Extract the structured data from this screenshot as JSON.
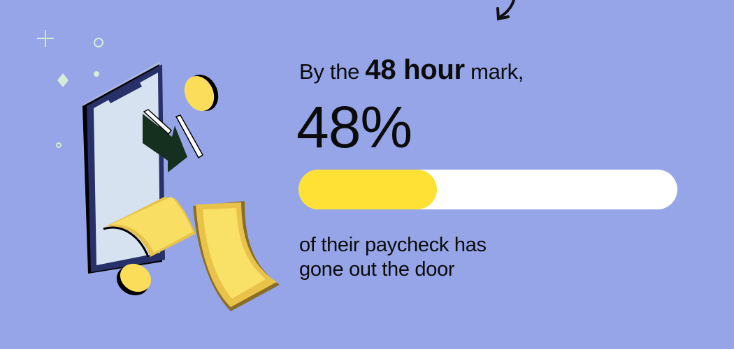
{
  "headline": {
    "prefix": "By the",
    "emphasis": "48 hour",
    "suffix": "mark,"
  },
  "stat": {
    "value": "48%"
  },
  "progress_bar": {
    "fill_fraction": 0.365,
    "fill_color": "#ffe136",
    "track_color": "#ffffff"
  },
  "subtext": {
    "line1": "of their paycheck has",
    "line2": "gone out the door"
  },
  "colors": {
    "background": "#95a5e7",
    "accent_green": "#16301f",
    "coin": "#fbdd5a"
  }
}
